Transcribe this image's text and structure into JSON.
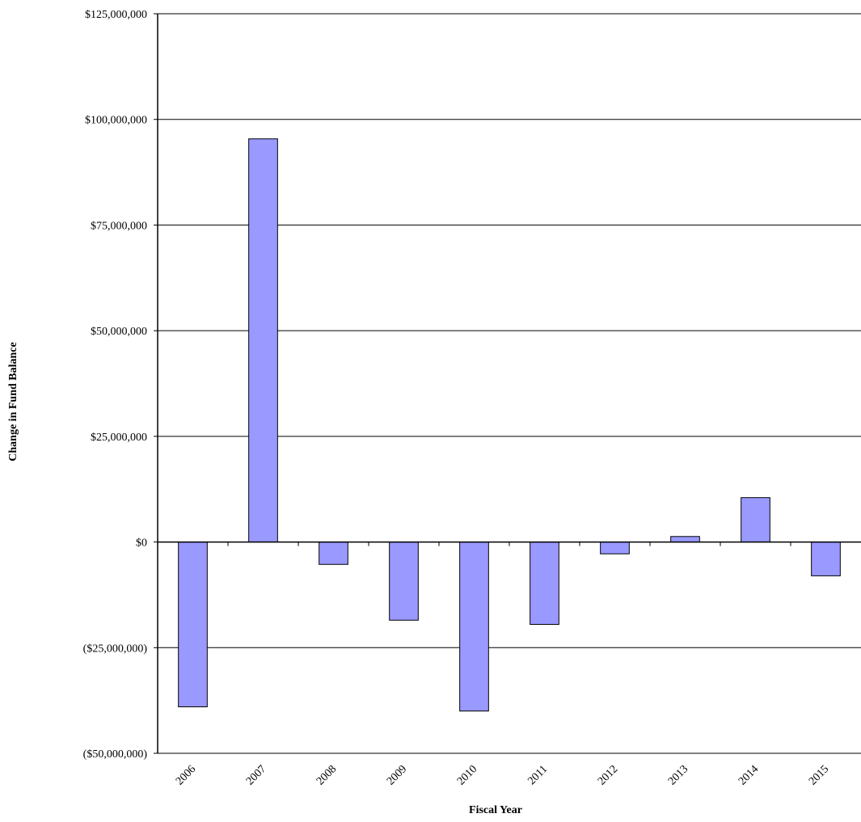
{
  "chart_data": {
    "type": "bar",
    "title": "",
    "xlabel": "Fiscal Year",
    "ylabel": "Change in Fund Balance",
    "categories": [
      "2006",
      "2007",
      "2008",
      "2009",
      "2010",
      "2011",
      "2012",
      "2013",
      "2014",
      "2015"
    ],
    "values": [
      -39000000,
      95400000,
      -5300000,
      -18500000,
      -40000000,
      -19500000,
      -2800000,
      1300000,
      10500000,
      -8000000
    ],
    "ylim": [
      -50000000,
      125000000
    ],
    "yticks": [
      125000000,
      100000000,
      75000000,
      50000000,
      25000000,
      0,
      -25000000,
      -50000000
    ],
    "ytick_labels": [
      "$125,000,000",
      "$100,000,000",
      "$75,000,000",
      "$50,000,000",
      "$25,000,000",
      "$0",
      "($25,000,000)",
      "($50,000,000)"
    ],
    "grid": true,
    "legend": false,
    "colors": {
      "bar_fill": "#9999ff",
      "bar_stroke": "#000000",
      "grid": "#000000",
      "axis": "#000000"
    }
  }
}
